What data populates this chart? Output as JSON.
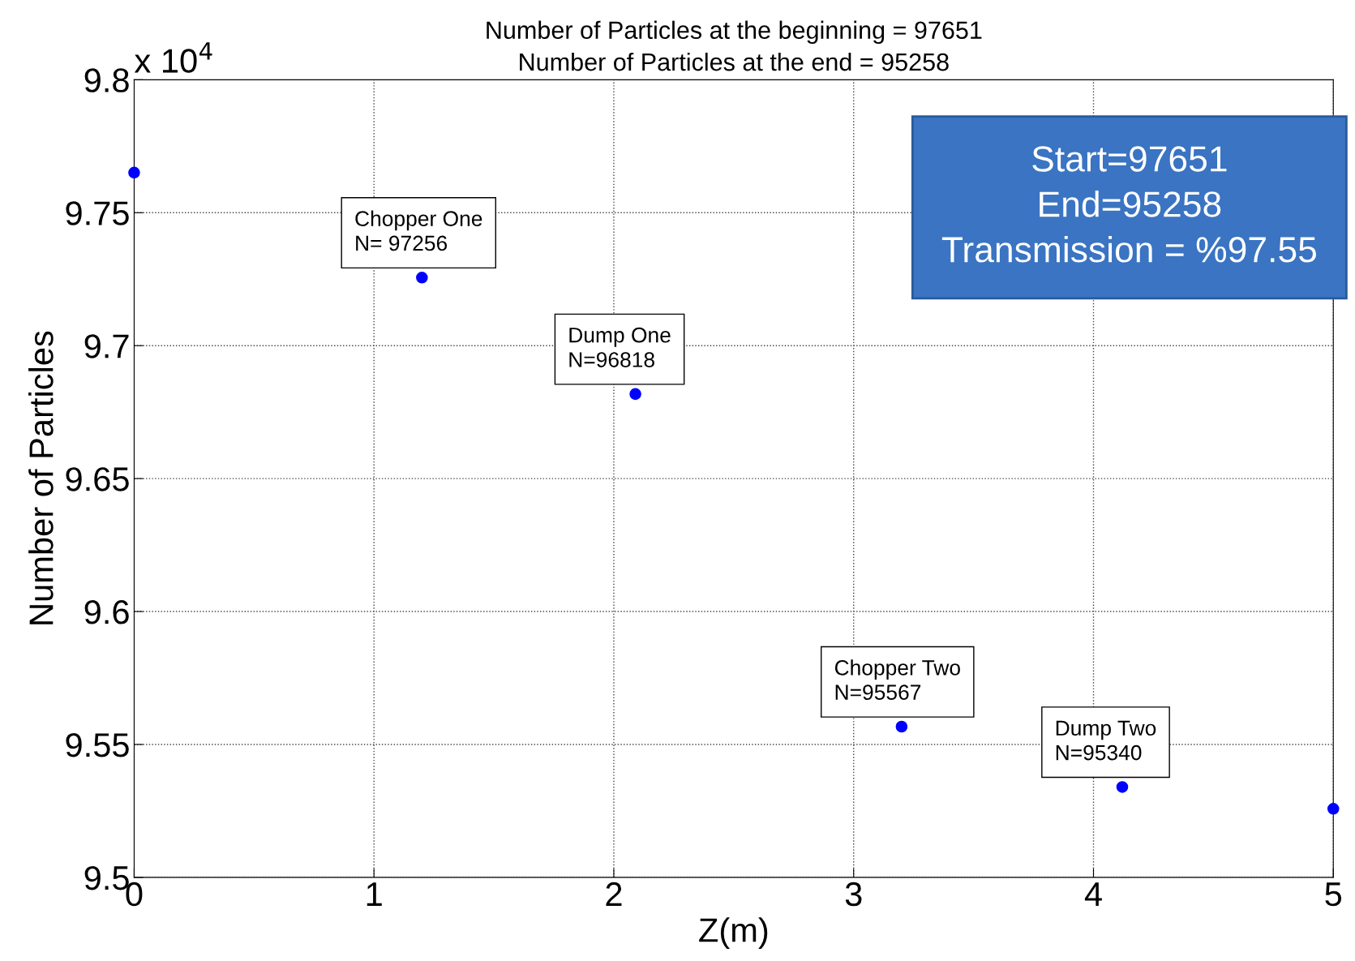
{
  "chart_data": {
    "type": "scatter",
    "title": "Number of Particles at the beginning = 97651",
    "subtitle": "Number of Particles at the end = 95258",
    "xlabel": "Z(m)",
    "ylabel": "Number of Particles",
    "x": [
      0,
      1.2,
      2.09,
      3.2,
      4.12,
      5
    ],
    "series": [
      {
        "color": "#0000ff",
        "values": [
          9.7651,
          9.7256,
          9.6818,
          9.5567,
          9.534,
          9.5258
        ]
      }
    ],
    "marker": "circle",
    "grid": true,
    "xlim": [
      0,
      5
    ],
    "xticks": [
      0,
      1,
      2,
      3,
      4,
      5
    ],
    "ylim": [
      9.5,
      9.8
    ],
    "yticks": [
      9.5,
      9.55,
      9.6,
      9.65,
      9.7,
      9.75,
      9.8
    ],
    "annotations": [
      "x 10$^{4}$",
      "Start=97651\nEnd=95258\nTransmission = %97.55",
      {
        "text": "Chopper One\nN= 97256",
        "x": 1.2,
        "y": 9.7256
      },
      {
        "text": "Dump One\nN=96818",
        "x": 2.09,
        "y": 9.6818
      },
      {
        "text": "Chopper Two\nN=95567",
        "x": 3.2,
        "y": 9.5567
      },
      {
        "text": "Dump Two\nN=95340",
        "x": 4.12,
        "y": 9.534
      }
    ]
  }
}
